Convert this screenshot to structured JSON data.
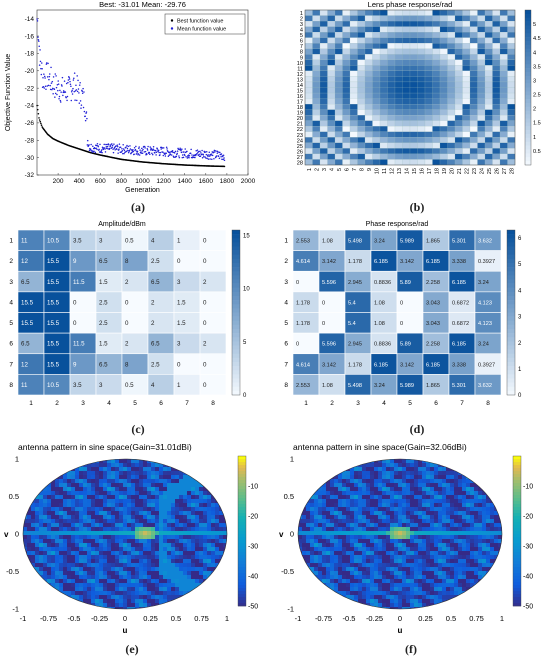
{
  "captions": [
    "(a)",
    "(b)",
    "(c)",
    "(d)",
    "(e)",
    "(f)"
  ],
  "chart_data": [
    {
      "id": "a",
      "type": "scatter",
      "title": "Best: -31.01 Mean: -29.76",
      "xlabel": "Generation",
      "ylabel": "Objective Function Value",
      "xlim": [
        0,
        2000
      ],
      "ylim": [
        -32,
        -13
      ],
      "xticks": [
        "200",
        "400",
        "600",
        "800",
        "1000",
        "1200",
        "1400",
        "1600",
        "1800",
        "2000"
      ],
      "yticks": [
        "-14",
        "-16",
        "-18",
        "-20",
        "-22",
        "-24",
        "-26",
        "-28",
        "-30",
        "-32"
      ],
      "legend": {
        "position": "top-right",
        "entries": [
          "Best function value",
          "Mean function value"
        ]
      },
      "series": [
        {
          "name": "Best function value",
          "color": "#000000",
          "x": [
            1,
            20,
            50,
            100,
            150,
            200,
            300,
            400,
            500,
            600,
            800,
            1000,
            1200,
            1400,
            1600,
            1780
          ],
          "y": [
            -24,
            -25.5,
            -26.5,
            -27.3,
            -27.8,
            -28.1,
            -28.6,
            -29.0,
            -29.4,
            -29.7,
            -30.2,
            -30.5,
            -30.7,
            -30.85,
            -30.95,
            -31.01
          ]
        },
        {
          "name": "Mean function value",
          "color": "#1f1fd6",
          "x": [
            1,
            10,
            30,
            60,
            100,
            150,
            200,
            250,
            300,
            350,
            400,
            430,
            460,
            480,
            500,
            600,
            800,
            1000,
            1200,
            1400,
            1600,
            1780
          ],
          "y": [
            -14,
            -15,
            -19,
            -21,
            -20.5,
            -21.5,
            -22,
            -22.3,
            -22.2,
            -21.6,
            -22.5,
            -23,
            -24,
            -28,
            -28.8,
            -28.9,
            -29.0,
            -29.2,
            -29.3,
            -29.5,
            -29.6,
            -29.76
          ]
        }
      ]
    },
    {
      "id": "b",
      "type": "heatmap",
      "title": "Lens phase response/rad",
      "size": 28,
      "colorbar_ticks": [
        "5",
        "4.5",
        "4",
        "3.5",
        "3",
        "2.5",
        "2",
        "1.5",
        "1",
        "0.5"
      ],
      "vmin": 0,
      "vmax": 5.5,
      "row_labels": [
        "1",
        "2",
        "3",
        "4",
        "5",
        "6",
        "7",
        "8",
        "9",
        "10",
        "11",
        "12",
        "13",
        "14",
        "15",
        "16",
        "17",
        "18",
        "19",
        "20",
        "21",
        "22",
        "23",
        "24",
        "25",
        "26",
        "27",
        "28"
      ],
      "col_labels": [
        "1",
        "2",
        "3",
        "4",
        "5",
        "6",
        "7",
        "8",
        "9",
        "10",
        "11",
        "12",
        "13",
        "14",
        "15",
        "16",
        "17",
        "18",
        "19",
        "20",
        "21",
        "22",
        "23",
        "24",
        "25",
        "26",
        "27",
        "28"
      ]
    },
    {
      "id": "c",
      "type": "heatmap",
      "title": "Amplitude/dBm",
      "vmin": 0,
      "vmax": 15.5,
      "colorbar_ticks": [
        "15",
        "10",
        "5",
        "0"
      ],
      "row_labels": [
        "1",
        "2",
        "3",
        "4",
        "5",
        "6",
        "7",
        "8"
      ],
      "col_labels": [
        "1",
        "2",
        "3",
        "4",
        "5",
        "6",
        "7",
        "8"
      ],
      "values": [
        [
          "11",
          "10.5",
          "3.5",
          "3",
          "0.5",
          "4",
          "1",
          "0"
        ],
        [
          "12",
          "15.5",
          "9",
          "6.5",
          "8",
          "2.5",
          "0",
          "0"
        ],
        [
          "6.5",
          "15.5",
          "11.5",
          "1.5",
          "2",
          "6.5",
          "3",
          "2"
        ],
        [
          "15.5",
          "15.5",
          "0",
          "2.5",
          "0",
          "2",
          "1.5",
          "0"
        ],
        [
          "15.5",
          "15.5",
          "0",
          "2.5",
          "0",
          "2",
          "1.5",
          "0"
        ],
        [
          "6.5",
          "15.5",
          "11.5",
          "1.5",
          "2",
          "6.5",
          "3",
          "2"
        ],
        [
          "12",
          "15.5",
          "9",
          "6.5",
          "8",
          "2.5",
          "0",
          "0"
        ],
        [
          "11",
          "10.5",
          "3.5",
          "3",
          "0.5",
          "4",
          "1",
          "0"
        ]
      ]
    },
    {
      "id": "d",
      "type": "heatmap",
      "title": "Phase response/rad",
      "vmin": 0,
      "vmax": 6.3,
      "colorbar_ticks": [
        "6",
        "5",
        "4",
        "3",
        "2",
        "1",
        "0"
      ],
      "row_labels": [
        "1",
        "2",
        "3",
        "4",
        "5",
        "6",
        "7",
        "8"
      ],
      "col_labels": [
        "1",
        "2",
        "3",
        "4",
        "5",
        "6",
        "7",
        "8"
      ],
      "values": [
        [
          "2.553",
          "1.08",
          "5.498",
          "3.24",
          "5.989",
          "1.865",
          "5.301",
          "3.632"
        ],
        [
          "4.614",
          "3.142",
          "1.178",
          "6.185",
          "3.142",
          "6.185",
          "3.338",
          "0.3927"
        ],
        [
          "0",
          "5.596",
          "2.945",
          "0.8836",
          "5.89",
          "2.258",
          "6.185",
          "3.24"
        ],
        [
          "1.178",
          "0",
          "5.4",
          "1.08",
          "0",
          "3.043",
          "0.6872",
          "4.123"
        ],
        [
          "1.178",
          "0",
          "5.4",
          "1.08",
          "0",
          "3.043",
          "0.6872",
          "4.123"
        ],
        [
          "0",
          "5.596",
          "2.945",
          "0.8836",
          "5.89",
          "2.258",
          "6.185",
          "3.24"
        ],
        [
          "4.614",
          "3.142",
          "1.178",
          "6.185",
          "3.142",
          "6.185",
          "3.338",
          "0.3927"
        ],
        [
          "2.553",
          "1.08",
          "5.498",
          "3.24",
          "5.989",
          "1.865",
          "5.301",
          "3.632"
        ]
      ]
    },
    {
      "id": "e",
      "type": "heatmap",
      "title": "antenna pattern in sine space(Gain=31.01dBi)",
      "xlabel": "u",
      "ylabel": "v",
      "xticks": [
        "-1",
        "-0.75",
        "-0.5",
        "-0.25",
        "0",
        "0.25",
        "0.5",
        "0.75",
        "1"
      ],
      "yticks": [
        "1",
        "0.5",
        "0",
        "-0.5",
        "-1"
      ],
      "colorbar_ticks": [
        "-10",
        "-20",
        "-30",
        "-40",
        "-50"
      ],
      "vmin": -50,
      "vmax": 0,
      "beam_peak": {
        "u": 0.2,
        "v": 0
      }
    },
    {
      "id": "f",
      "type": "heatmap",
      "title": "antenna pattern in sine space(Gain=32.06dBi)",
      "xlabel": "u",
      "ylabel": "v",
      "xticks": [
        "-1",
        "-0.75",
        "-0.5",
        "-0.25",
        "0",
        "0.25",
        "0.5",
        "0.75",
        "1"
      ],
      "yticks": [
        "1",
        "0.5",
        "0",
        "-0.5",
        "-1"
      ],
      "colorbar_ticks": [
        "-10",
        "-20",
        "-30",
        "-40",
        "-50"
      ],
      "vmin": -50,
      "vmax": 0,
      "beam_peak": {
        "u": 0,
        "v": 0
      }
    }
  ]
}
